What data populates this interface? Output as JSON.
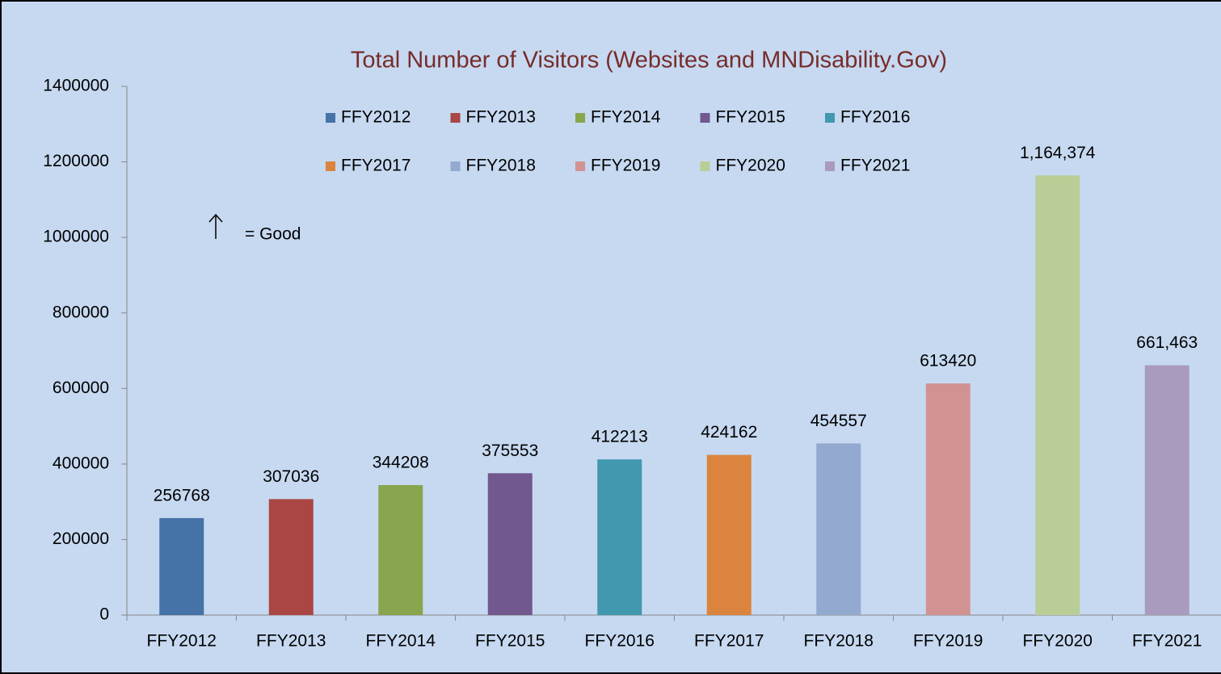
{
  "chart_data": {
    "type": "bar",
    "title": "Total Number of Visitors (Websites and MNDisability.Gov)",
    "categories": [
      "FFY2012",
      "FFY2013",
      "FFY2014",
      "FFY2015",
      "FFY2016",
      "FFY2017",
      "FFY2018",
      "FFY2019",
      "FFY2020",
      "FFY2021"
    ],
    "values": [
      256768,
      307036,
      344208,
      375553,
      412213,
      424162,
      454557,
      613420,
      1164374,
      661463
    ],
    "value_labels": [
      "256768",
      "307036",
      "344208",
      "375553",
      "412213",
      "424162",
      "454557",
      "613420",
      "1,164,374",
      "661,463"
    ],
    "colors": [
      "#4572a7",
      "#aa4643",
      "#89a54e",
      "#71588f",
      "#4198af",
      "#db843d",
      "#93a9cf",
      "#d19392",
      "#b9cd96",
      "#a99bbd"
    ],
    "ylim": [
      0,
      1400000
    ],
    "yticks": [
      0,
      200000,
      400000,
      600000,
      800000,
      1000000,
      1200000,
      1400000
    ],
    "legend": true,
    "annotation": "= Good"
  }
}
